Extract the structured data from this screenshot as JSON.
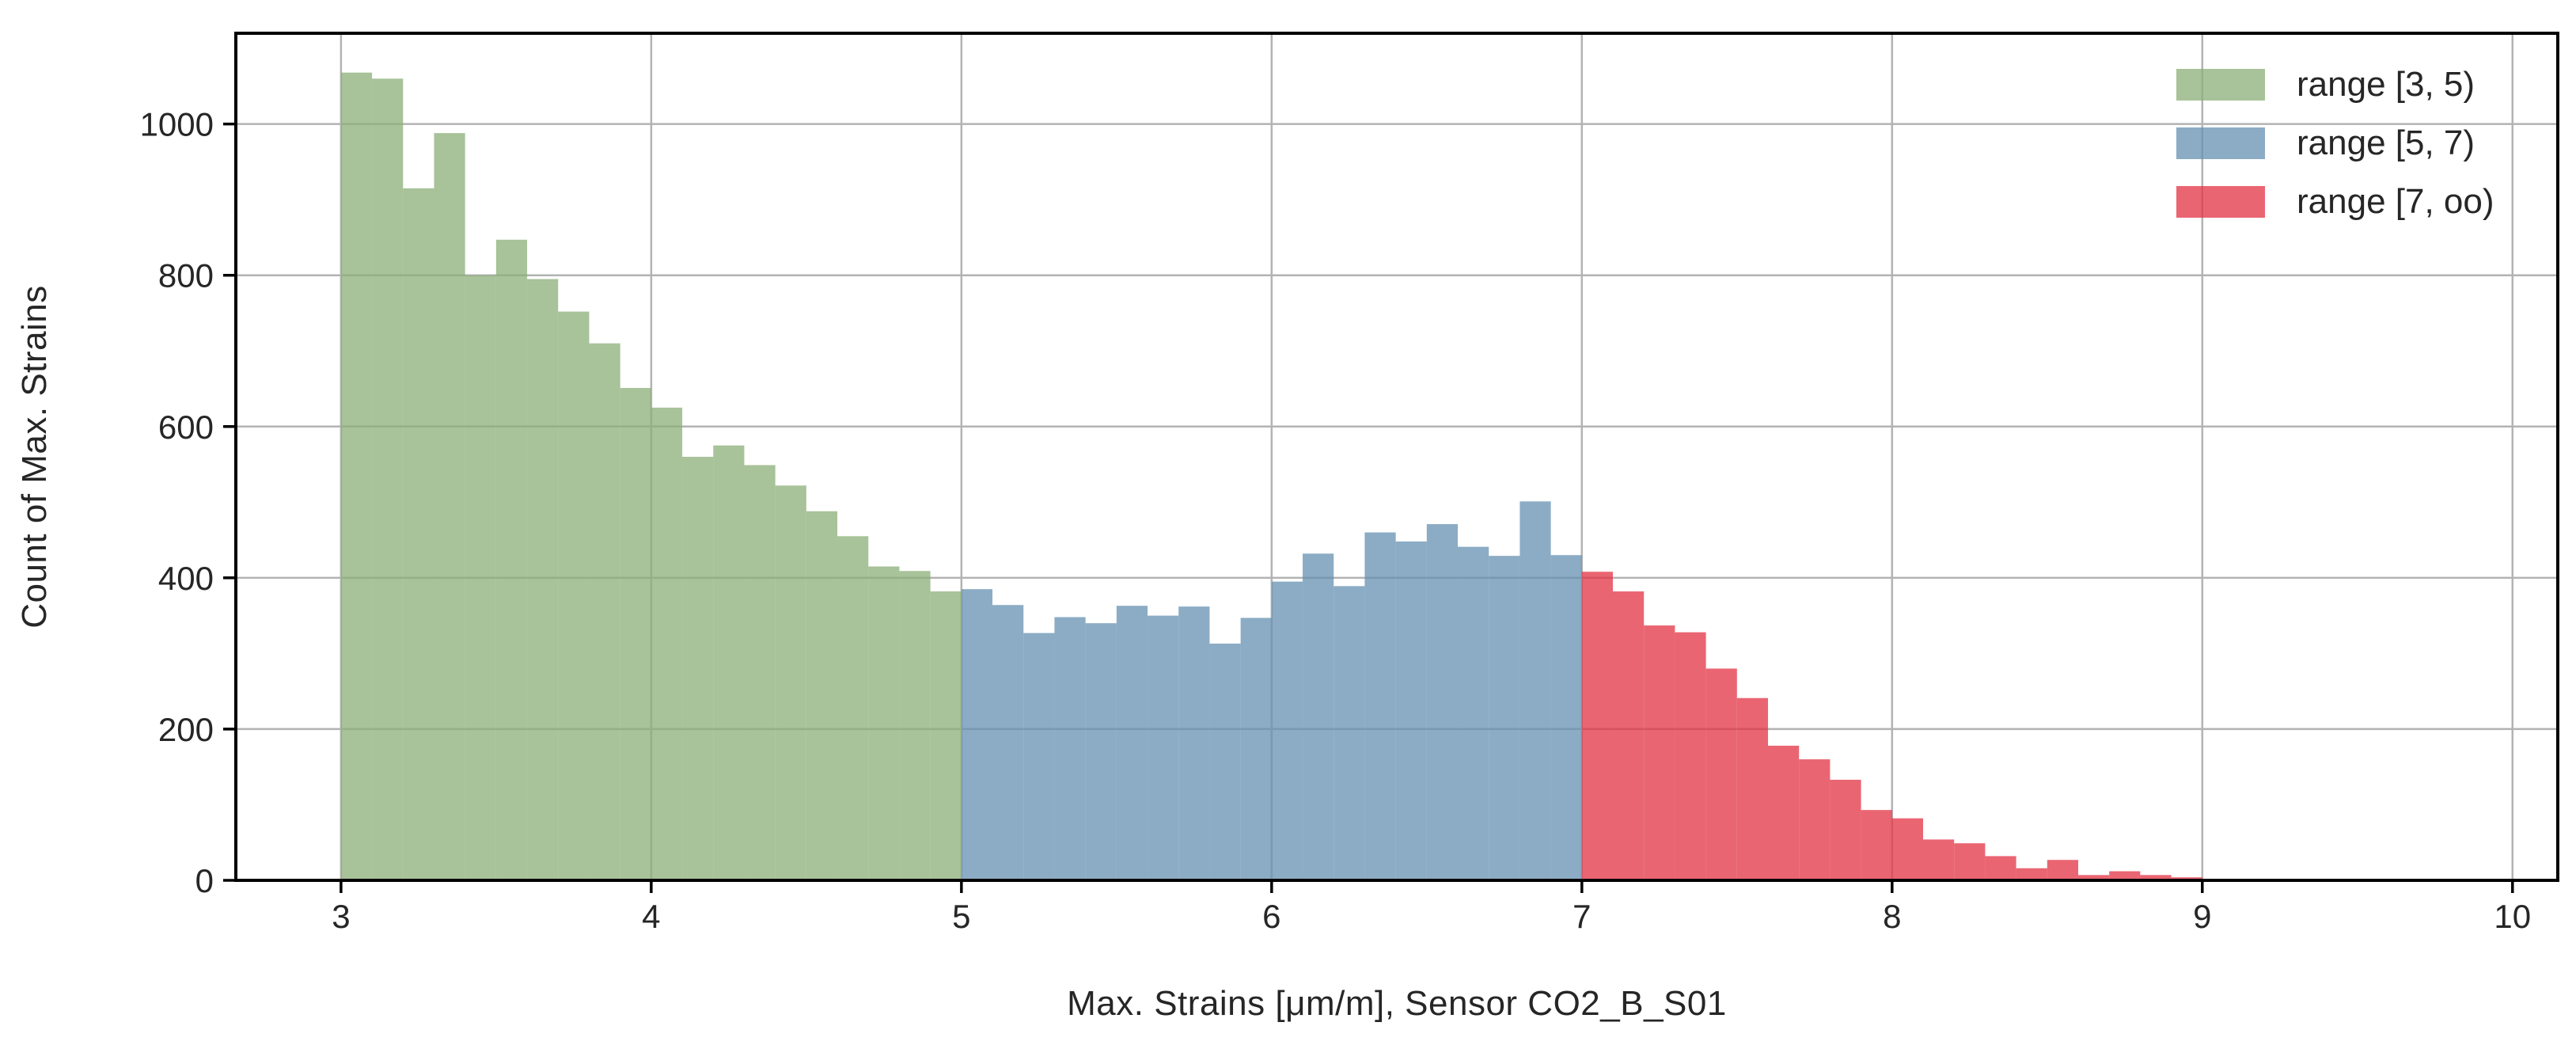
{
  "chart_data": {
    "type": "histogram",
    "title": "",
    "xlabel": "Max. Strains [μm/m], Sensor CO2_B_S01",
    "ylabel": "Count of Max. Strains",
    "bin_start": 3.0,
    "bin_width": 0.1,
    "counts": [
      1068,
      1060,
      915,
      988,
      800,
      847,
      795,
      752,
      710,
      651,
      625,
      560,
      575,
      549,
      522,
      488,
      455,
      415,
      409,
      382,
      385,
      364,
      327,
      348,
      340,
      363,
      350,
      362,
      313,
      347,
      395,
      432,
      389,
      460,
      448,
      471,
      441,
      429,
      501,
      430,
      408,
      382,
      337,
      328,
      280,
      241,
      178,
      160,
      133,
      93,
      82,
      54,
      49,
      32,
      16,
      27,
      7,
      12,
      7,
      4,
      2,
      1,
      1,
      1,
      0,
      1,
      0,
      1
    ],
    "segments": [
      {
        "label": "range [3, 5)",
        "from": 3,
        "to": 5,
        "color": "#8bae77"
      },
      {
        "label": "range [5, 7)",
        "from": 5,
        "to": 7,
        "color": "#6490b0"
      },
      {
        "label": "range [7, oo)",
        "from": 7,
        "to": null,
        "color": "#e33243"
      }
    ],
    "fill_opacity": 0.75,
    "xticks": [
      3,
      4,
      5,
      6,
      7,
      8,
      9,
      10
    ],
    "yticks": [
      0,
      200,
      400,
      600,
      800,
      1000
    ],
    "xlim": [
      2.661,
      10.146
    ],
    "ylim": [
      0,
      1120
    ],
    "grid": true,
    "legend_position": "upper right",
    "colors": {
      "grid": "#b3b3b3",
      "spine": "#000000",
      "tick": "#000000",
      "text": "#262626",
      "background": "#ffffff"
    }
  }
}
